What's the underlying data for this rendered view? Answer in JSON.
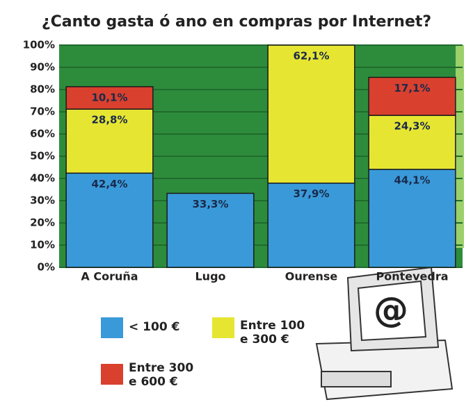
{
  "chart_data": {
    "type": "stacked-bar",
    "title": "¿Canto gasta ó ano en compras por Internet?",
    "categories": [
      "A Coruña",
      "Lugo",
      "Ourense",
      "Pontevedra"
    ],
    "series": [
      {
        "name": "< 100 €",
        "color": "#3a9ad9",
        "values": [
          42.4,
          33.3,
          37.9,
          44.1
        ],
        "value_labels": [
          "42,4%",
          "33,3%",
          "37,9%",
          "44,1%"
        ]
      },
      {
        "name": "Entre 100 e 300 €",
        "color": "#e6e632",
        "values": [
          28.8,
          null,
          62.1,
          24.3
        ],
        "value_labels": [
          "28,8%",
          null,
          "62,1%",
          "24,3%"
        ]
      },
      {
        "name": "Entre 300 e 600 €",
        "color": "#d9402e",
        "values": [
          10.1,
          null,
          null,
          17.1
        ],
        "value_labels": [
          "10,1%",
          null,
          null,
          "17,1%"
        ]
      }
    ],
    "ylim": [
      0,
      100
    ],
    "yticks": [
      {
        "value": 0,
        "label": "0%"
      },
      {
        "value": 10,
        "label": "10%"
      },
      {
        "value": 20,
        "label": "20%"
      },
      {
        "value": 30,
        "label": "30%"
      },
      {
        "value": 40,
        "label": "40%"
      },
      {
        "value": 50,
        "label": "50%"
      },
      {
        "value": 60,
        "label": "60%"
      },
      {
        "value": 70,
        "label": "70%"
      },
      {
        "value": 80,
        "label": "80%"
      },
      {
        "value": 90,
        "label": "90%"
      },
      {
        "value": 100,
        "label": "100%"
      }
    ],
    "grid": true
  }
}
